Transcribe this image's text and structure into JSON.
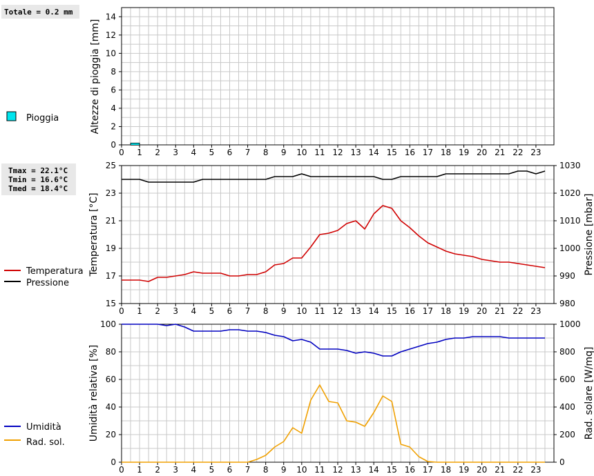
{
  "summary": {
    "rain_total": "Totale = 0.2 mm",
    "tmax": "Tmax = 22.1°C",
    "tmin": "Tmin = 16.6°C",
    "tmed": "Tmed = 18.4°C"
  },
  "legend": {
    "rain": "Pioggia",
    "temperature": "Temperatura",
    "pressure": "Pressione",
    "humidity": "Umidità",
    "radiation": "Rad. sol."
  },
  "colors": {
    "rain": "#00e5ee",
    "temperature": "#d00000",
    "pressure": "#000000",
    "humidity": "#0000c0",
    "radiation": "#f0a000",
    "grid": "#c8c8c8"
  },
  "chart_data": [
    {
      "type": "bar",
      "xlabel": "",
      "ylabel": "Altezze di pioggia [mm]",
      "x_ticks": [
        "0",
        "1",
        "2",
        "3",
        "4",
        "5",
        "6",
        "7",
        "8",
        "9",
        "10",
        "11",
        "12",
        "13",
        "14",
        "15",
        "16",
        "17",
        "18",
        "19",
        "20",
        "21",
        "22",
        "23"
      ],
      "xlim": [
        0,
        24
      ],
      "ylim": [
        0,
        15
      ],
      "y_ticks": [
        0,
        2,
        4,
        6,
        8,
        10,
        12,
        14
      ],
      "bars": [
        {
          "start": 0.5,
          "end": 1.0,
          "value": 0.2,
          "name": "Pioggia"
        }
      ],
      "grid": true
    },
    {
      "type": "line",
      "xlabel": "",
      "ylabel": "Temperatura [°C]",
      "y2label": "Pressione [mbar]",
      "xlim": [
        0,
        24
      ],
      "ylim": [
        15,
        25
      ],
      "y2lim": [
        980,
        1030
      ],
      "y_ticks": [
        15,
        17,
        19,
        21,
        23,
        25
      ],
      "y2_ticks": [
        980,
        990,
        1000,
        1010,
        1020,
        1030
      ],
      "x_ticks": [
        "0",
        "1",
        "2",
        "3",
        "4",
        "5",
        "6",
        "7",
        "8",
        "9",
        "10",
        "11",
        "12",
        "13",
        "14",
        "15",
        "16",
        "17",
        "18",
        "19",
        "20",
        "21",
        "22",
        "23"
      ],
      "grid": true,
      "series": [
        {
          "name": "Temperatura",
          "axis": "left",
          "x": [
            0,
            0.5,
            1,
            1.5,
            2,
            2.5,
            3,
            3.5,
            4,
            4.5,
            5,
            5.5,
            6,
            6.5,
            7,
            7.5,
            8,
            8.5,
            9,
            9.5,
            10,
            10.5,
            11,
            11.5,
            12,
            12.5,
            13,
            13.5,
            14,
            14.5,
            15,
            15.5,
            16,
            16.5,
            17,
            17.5,
            18,
            18.5,
            19,
            19.5,
            20,
            20.5,
            21,
            21.5,
            22,
            22.5,
            23,
            23.5
          ],
          "values": [
            16.7,
            16.7,
            16.7,
            16.6,
            16.9,
            16.9,
            17.0,
            17.1,
            17.3,
            17.2,
            17.2,
            17.2,
            17.0,
            17.0,
            17.1,
            17.1,
            17.3,
            17.8,
            17.9,
            18.3,
            18.3,
            19.1,
            20.0,
            20.1,
            20.3,
            20.8,
            21.0,
            20.4,
            21.5,
            22.1,
            21.9,
            21.0,
            20.5,
            19.9,
            19.4,
            19.1,
            18.8,
            18.6,
            18.5,
            18.4,
            18.2,
            18.1,
            18.0,
            18.0,
            17.9,
            17.8,
            17.7,
            17.6
          ]
        },
        {
          "name": "Pressione",
          "axis": "right",
          "x": [
            0,
            0.5,
            1,
            1.5,
            2,
            2.5,
            3,
            3.5,
            4,
            4.5,
            5,
            5.5,
            6,
            6.5,
            7,
            7.5,
            8,
            8.5,
            9,
            9.5,
            10,
            10.5,
            11,
            11.5,
            12,
            12.5,
            13,
            13.5,
            14,
            14.5,
            15,
            15.5,
            16,
            16.5,
            17,
            17.5,
            18,
            18.5,
            19,
            19.5,
            20,
            20.5,
            21,
            21.5,
            22,
            22.5,
            23,
            23.5
          ],
          "values": [
            1025,
            1025,
            1025,
            1024,
            1024,
            1024,
            1024,
            1024,
            1024,
            1025,
            1025,
            1025,
            1025,
            1025,
            1025,
            1025,
            1025,
            1026,
            1026,
            1026,
            1027,
            1026,
            1026,
            1026,
            1026,
            1026,
            1026,
            1026,
            1026,
            1025,
            1025,
            1026,
            1026,
            1026,
            1026,
            1026,
            1027,
            1027,
            1027,
            1027,
            1027,
            1027,
            1027,
            1027,
            1028,
            1028,
            1027,
            1028
          ]
        }
      ]
    },
    {
      "type": "line",
      "xlabel": "",
      "ylabel": "Umidità relativa [%]",
      "y2label": "Rad. solare [W/mq]",
      "xlim": [
        0,
        24
      ],
      "ylim": [
        0,
        100
      ],
      "y2lim": [
        0,
        1000
      ],
      "y_ticks": [
        0,
        20,
        40,
        60,
        80,
        100
      ],
      "y2_ticks": [
        0,
        200,
        400,
        600,
        800,
        1000
      ],
      "x_ticks": [
        "0",
        "1",
        "2",
        "3",
        "4",
        "5",
        "6",
        "7",
        "8",
        "9",
        "10",
        "11",
        "12",
        "13",
        "14",
        "15",
        "16",
        "17",
        "18",
        "19",
        "20",
        "21",
        "22",
        "23"
      ],
      "grid": true,
      "series": [
        {
          "name": "Umidità",
          "axis": "left",
          "x": [
            0,
            0.5,
            1,
            1.5,
            2,
            2.5,
            3,
            3.5,
            4,
            4.5,
            5,
            5.5,
            6,
            6.5,
            7,
            7.5,
            8,
            8.5,
            9,
            9.5,
            10,
            10.5,
            11,
            11.5,
            12,
            12.5,
            13,
            13.5,
            14,
            14.5,
            15,
            15.5,
            16,
            16.5,
            17,
            17.5,
            18,
            18.5,
            19,
            19.5,
            20,
            20.5,
            21,
            21.5,
            22,
            22.5,
            23,
            23.5
          ],
          "values": [
            100,
            100,
            100,
            100,
            100,
            99,
            100,
            98,
            95,
            95,
            95,
            95,
            96,
            96,
            95,
            95,
            94,
            92,
            91,
            88,
            89,
            87,
            82,
            82,
            82,
            81,
            79,
            80,
            79,
            77,
            77,
            80,
            82,
            84,
            86,
            87,
            89,
            90,
            90,
            91,
            91,
            91,
            91,
            90,
            90,
            90,
            90,
            90
          ]
        },
        {
          "name": "Rad. sol.",
          "axis": "right",
          "x": [
            0,
            0.5,
            1,
            1.5,
            2,
            2.5,
            3,
            3.5,
            4,
            4.5,
            5,
            5.5,
            6,
            6.5,
            7,
            7.5,
            8,
            8.5,
            9,
            9.5,
            10,
            10.5,
            11,
            11.5,
            12,
            12.5,
            13,
            13.5,
            14,
            14.5,
            15,
            15.5,
            16,
            16.5,
            17,
            17.5,
            18,
            18.5,
            19,
            19.5,
            20,
            20.5,
            21,
            21.5,
            22,
            22.5,
            23,
            23.5
          ],
          "values": [
            0,
            0,
            0,
            0,
            0,
            0,
            0,
            0,
            0,
            0,
            0,
            0,
            0,
            0,
            0,
            20,
            50,
            110,
            150,
            250,
            210,
            450,
            560,
            440,
            430,
            300,
            290,
            260,
            360,
            480,
            440,
            130,
            110,
            40,
            5,
            0,
            0,
            0,
            0,
            0,
            0,
            0,
            0,
            0,
            0,
            0,
            0,
            0
          ]
        }
      ]
    }
  ]
}
